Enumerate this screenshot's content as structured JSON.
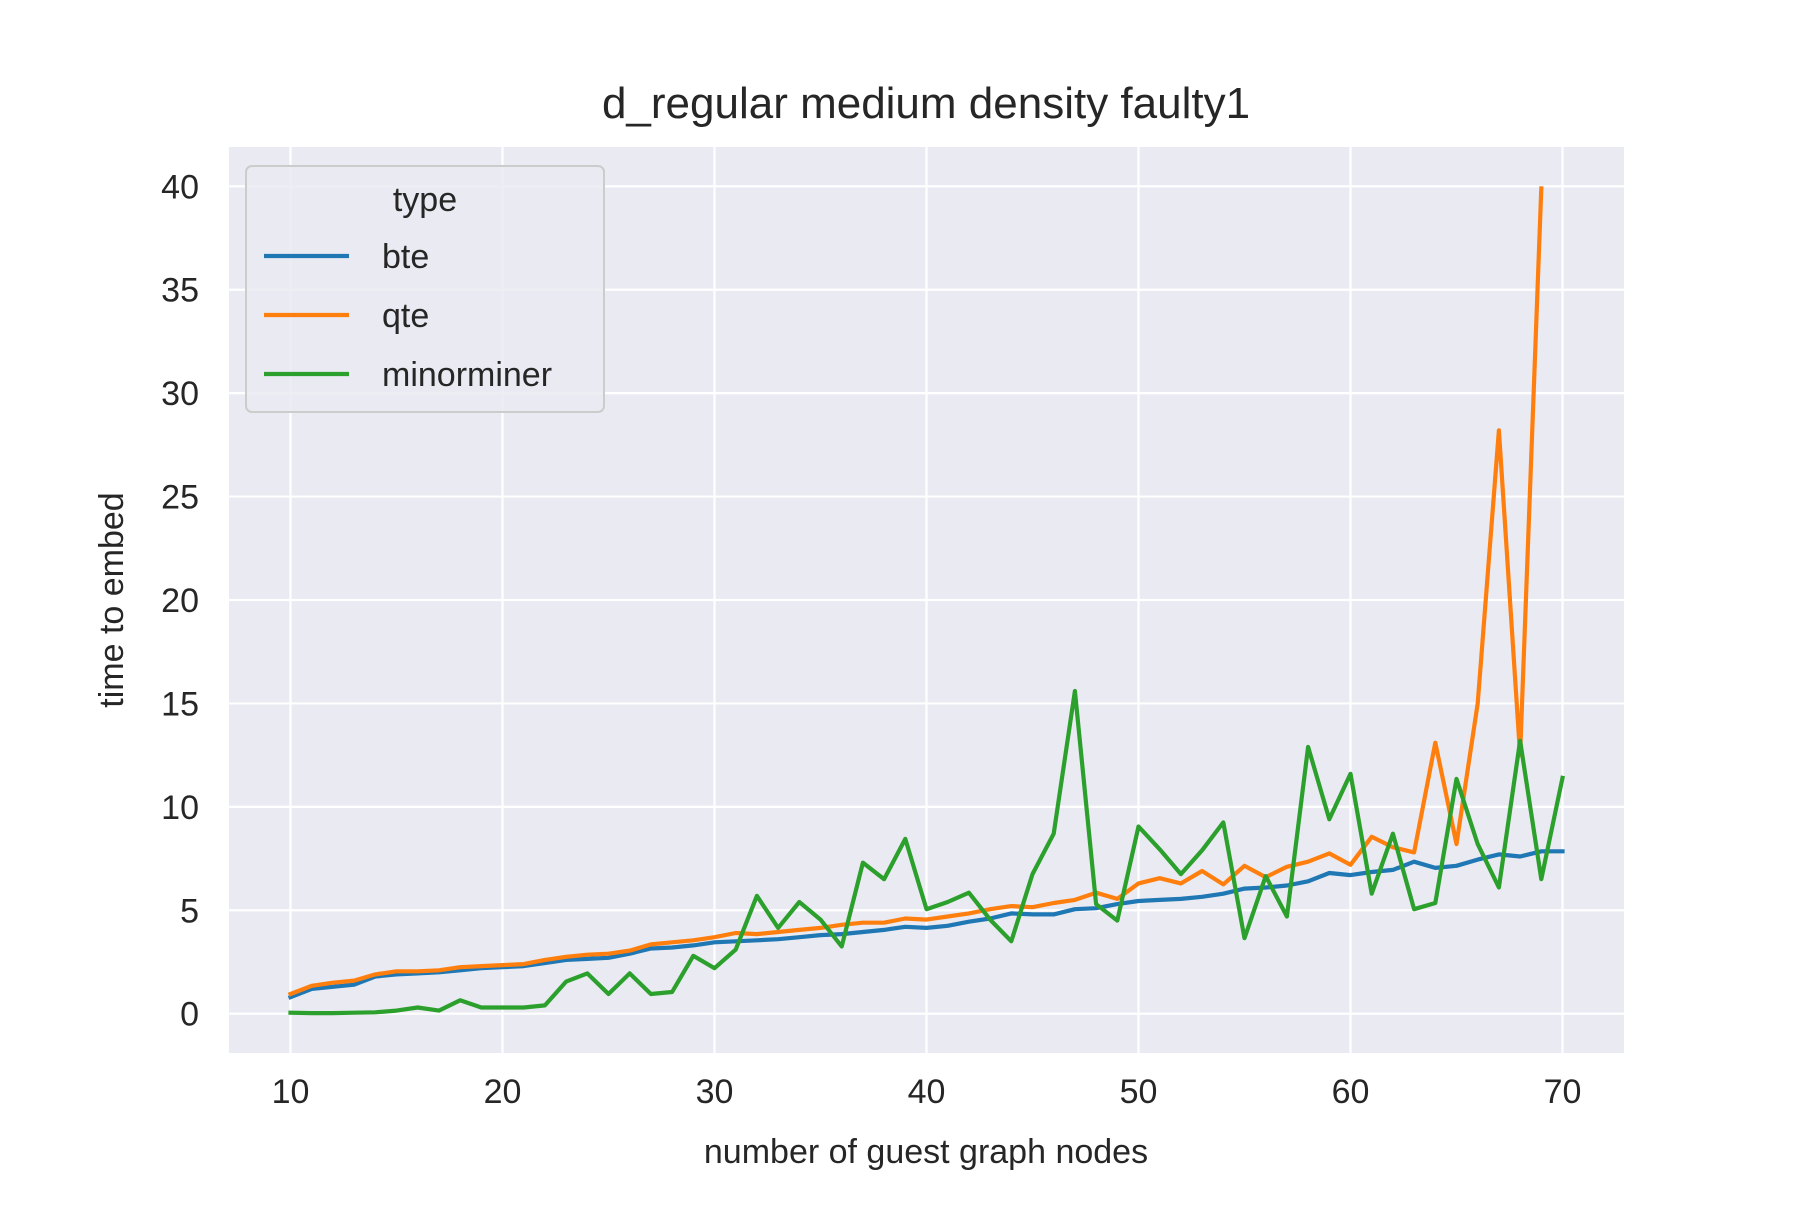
{
  "chart_data": {
    "type": "line",
    "title": "d_regular medium density faulty1",
    "xlabel": "number of guest graph nodes",
    "ylabel": "time to embed",
    "xlim": [
      7.1,
      72.9
    ],
    "ylim": [
      -1.9,
      41.9
    ],
    "xticks": [
      10,
      20,
      30,
      40,
      50,
      60,
      70
    ],
    "yticks": [
      0,
      5,
      10,
      15,
      20,
      25,
      30,
      35,
      40
    ],
    "grid": true,
    "background": "#eaeaf2",
    "legend": {
      "title": "type",
      "position": "top-left"
    },
    "x": [
      10,
      11,
      12,
      13,
      14,
      15,
      16,
      17,
      18,
      19,
      20,
      21,
      22,
      23,
      24,
      25,
      26,
      27,
      28,
      29,
      30,
      31,
      32,
      33,
      34,
      35,
      36,
      37,
      38,
      39,
      40,
      41,
      42,
      43,
      44,
      45,
      46,
      47,
      48,
      49,
      50,
      51,
      52,
      53,
      54,
      55,
      56,
      57,
      58,
      59,
      60,
      61,
      62,
      63,
      64,
      65,
      66,
      67,
      68,
      69,
      70
    ],
    "series": [
      {
        "name": "bte",
        "color": "#1f77b4",
        "values": [
          0.8,
          1.2,
          1.3,
          1.4,
          1.8,
          1.9,
          1.95,
          2.0,
          2.1,
          2.2,
          2.25,
          2.3,
          2.45,
          2.6,
          2.65,
          2.7,
          2.9,
          3.15,
          3.2,
          3.3,
          3.45,
          3.5,
          3.55,
          3.6,
          3.7,
          3.8,
          3.85,
          3.95,
          4.05,
          4.2,
          4.15,
          4.25,
          4.45,
          4.6,
          4.85,
          4.8,
          4.8,
          5.05,
          5.1,
          5.3,
          5.45,
          5.5,
          5.55,
          5.65,
          5.8,
          6.05,
          6.1,
          6.2,
          6.4,
          6.8,
          6.7,
          6.85,
          6.95,
          7.35,
          7.05,
          7.15,
          7.45,
          7.7,
          7.6,
          7.85,
          7.85
        ]
      },
      {
        "name": "qte",
        "color": "#ff7f0e",
        "values": [
          0.95,
          1.35,
          1.5,
          1.6,
          1.9,
          2.05,
          2.05,
          2.1,
          2.25,
          2.3,
          2.35,
          2.4,
          2.6,
          2.75,
          2.85,
          2.9,
          3.05,
          3.35,
          3.45,
          3.55,
          3.7,
          3.9,
          3.85,
          3.95,
          4.05,
          4.15,
          4.3,
          4.4,
          4.4,
          4.6,
          4.55,
          4.7,
          4.85,
          5.05,
          5.2,
          5.15,
          5.35,
          5.5,
          5.85,
          5.55,
          6.3,
          6.55,
          6.3,
          6.9,
          6.25,
          7.15,
          6.6,
          7.1,
          7.35,
          7.75,
          7.2,
          8.55,
          8.05,
          7.8,
          13.1,
          8.2,
          15.0,
          28.2,
          12.5,
          39.9,
          null
        ]
      },
      {
        "name": "minorminer",
        "color": "#2ca02c",
        "values": [
          0.05,
          0.03,
          0.03,
          0.05,
          0.07,
          0.15,
          0.3,
          0.15,
          0.65,
          0.3,
          0.3,
          0.3,
          0.4,
          1.55,
          1.95,
          0.95,
          1.95,
          0.95,
          1.05,
          2.8,
          2.2,
          3.1,
          5.7,
          4.15,
          5.4,
          4.55,
          3.25,
          7.3,
          6.5,
          8.45,
          5.05,
          5.4,
          5.85,
          4.55,
          3.5,
          6.75,
          8.7,
          15.6,
          5.3,
          4.5,
          9.05,
          7.95,
          6.75,
          7.9,
          9.25,
          3.65,
          6.65,
          4.7,
          12.9,
          9.4,
          11.6,
          5.8,
          8.7,
          5.05,
          5.35,
          11.35,
          8.2,
          6.1,
          13.2,
          6.5,
          11.4
        ]
      }
    ]
  }
}
